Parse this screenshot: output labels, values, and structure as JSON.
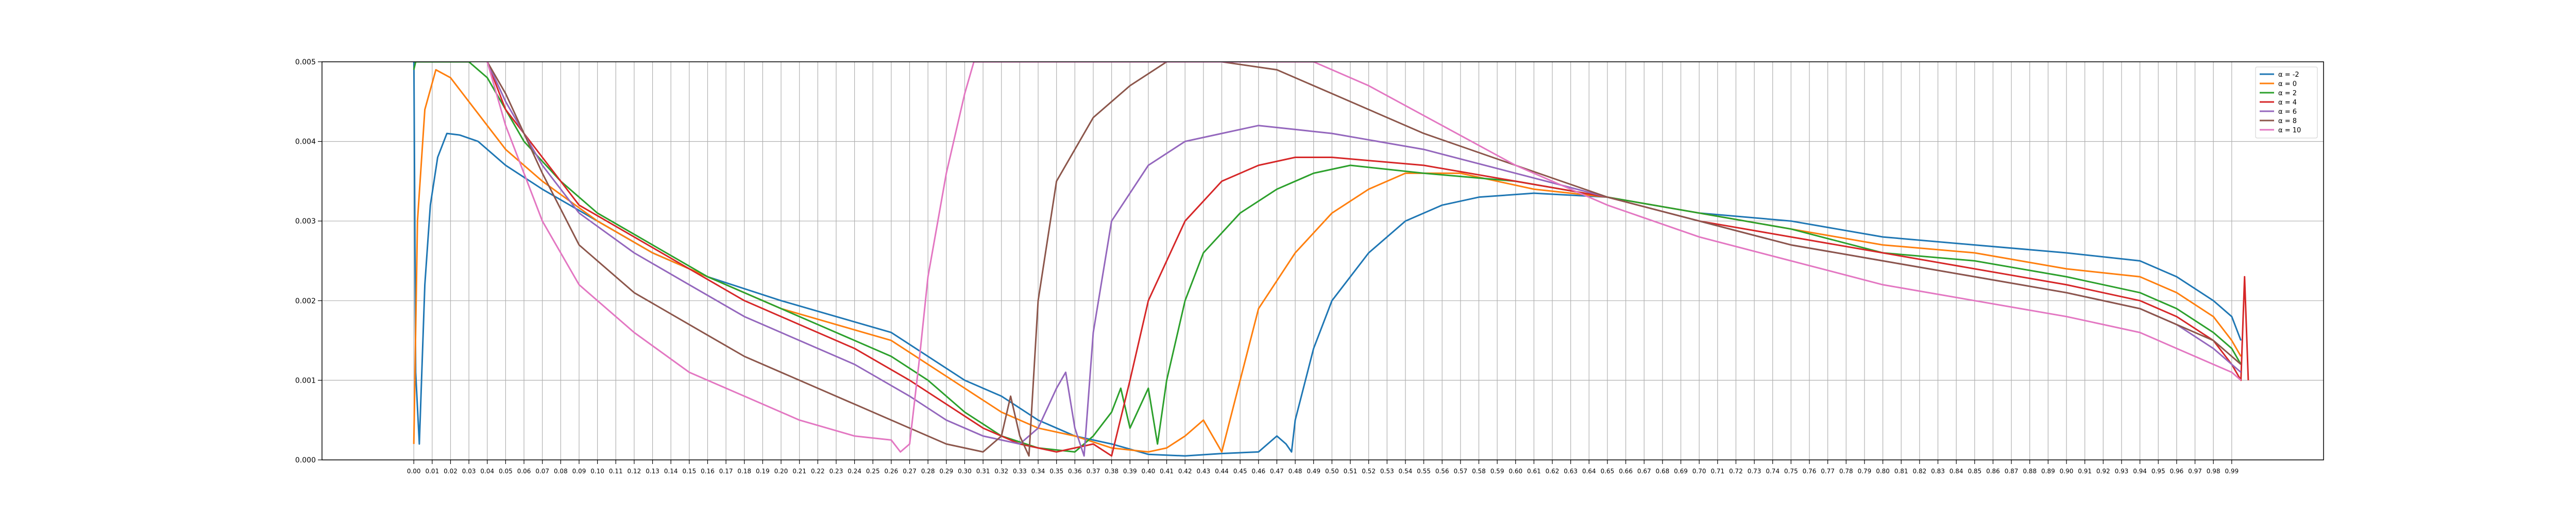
{
  "chart_data": {
    "type": "line",
    "title": "",
    "xlabel": "",
    "ylabel": "",
    "xlim": [
      -0.05,
      1.04
    ],
    "ylim": [
      0,
      0.005
    ],
    "grid": true,
    "legend_position": "top-right",
    "y_ticks": [
      "0.000",
      "0.001",
      "0.002",
      "0.003",
      "0.004",
      "0.005"
    ],
    "series": [
      {
        "name": "α = -2",
        "color": "#1f77b4",
        "points": [
          [
            0.0,
            0.0052
          ],
          [
            0.001,
            0.0011
          ],
          [
            0.003,
            0.0002
          ],
          [
            0.006,
            0.0022
          ],
          [
            0.009,
            0.0032
          ],
          [
            0.013,
            0.0038
          ],
          [
            0.018,
            0.0041
          ],
          [
            0.025,
            0.00408
          ],
          [
            0.035,
            0.004
          ],
          [
            0.05,
            0.0037
          ],
          [
            0.07,
            0.0034
          ],
          [
            0.1,
            0.003
          ],
          [
            0.13,
            0.0026
          ],
          [
            0.16,
            0.0023
          ],
          [
            0.2,
            0.002
          ],
          [
            0.23,
            0.0018
          ],
          [
            0.26,
            0.0016
          ],
          [
            0.28,
            0.0013
          ],
          [
            0.3,
            0.001
          ],
          [
            0.32,
            0.0008
          ],
          [
            0.34,
            0.0005
          ],
          [
            0.36,
            0.0003
          ],
          [
            0.38,
            0.0002
          ],
          [
            0.4,
            7e-05
          ],
          [
            0.42,
            5e-05
          ],
          [
            0.44,
            8e-05
          ],
          [
            0.46,
            0.0001
          ],
          [
            0.47,
            0.0003
          ],
          [
            0.475,
            0.0002
          ],
          [
            0.478,
            0.0001
          ],
          [
            0.48,
            0.0005
          ],
          [
            0.49,
            0.0014
          ],
          [
            0.5,
            0.002
          ],
          [
            0.52,
            0.0026
          ],
          [
            0.54,
            0.003
          ],
          [
            0.56,
            0.0032
          ],
          [
            0.58,
            0.0033
          ],
          [
            0.61,
            0.00335
          ],
          [
            0.65,
            0.0033
          ],
          [
            0.7,
            0.0031
          ],
          [
            0.75,
            0.003
          ],
          [
            0.8,
            0.0028
          ],
          [
            0.85,
            0.0027
          ],
          [
            0.9,
            0.0026
          ],
          [
            0.94,
            0.0025
          ],
          [
            0.96,
            0.0023
          ],
          [
            0.98,
            0.002
          ],
          [
            0.99,
            0.0018
          ],
          [
            0.995,
            0.0015
          ]
        ]
      },
      {
        "name": "α = 0",
        "color": "#ff7f0e",
        "points": [
          [
            0.0,
            0.0002
          ],
          [
            0.002,
            0.003
          ],
          [
            0.006,
            0.0044
          ],
          [
            0.012,
            0.0049
          ],
          [
            0.02,
            0.0048
          ],
          [
            0.03,
            0.0045
          ],
          [
            0.05,
            0.0039
          ],
          [
            0.07,
            0.0035
          ],
          [
            0.1,
            0.003
          ],
          [
            0.13,
            0.0026
          ],
          [
            0.16,
            0.0023
          ],
          [
            0.2,
            0.0019
          ],
          [
            0.23,
            0.0017
          ],
          [
            0.26,
            0.0015
          ],
          [
            0.28,
            0.0012
          ],
          [
            0.3,
            0.0009
          ],
          [
            0.32,
            0.0006
          ],
          [
            0.34,
            0.0004
          ],
          [
            0.36,
            0.0003
          ],
          [
            0.38,
            0.00015
          ],
          [
            0.4,
            0.0001
          ],
          [
            0.41,
            0.00015
          ],
          [
            0.42,
            0.0003
          ],
          [
            0.43,
            0.0005
          ],
          [
            0.44,
            0.0001
          ],
          [
            0.45,
            0.001
          ],
          [
            0.46,
            0.0019
          ],
          [
            0.48,
            0.0026
          ],
          [
            0.5,
            0.0031
          ],
          [
            0.52,
            0.0034
          ],
          [
            0.54,
            0.0036
          ],
          [
            0.57,
            0.0036
          ],
          [
            0.61,
            0.0034
          ],
          [
            0.65,
            0.0033
          ],
          [
            0.7,
            0.0031
          ],
          [
            0.75,
            0.0029
          ],
          [
            0.8,
            0.0027
          ],
          [
            0.85,
            0.0026
          ],
          [
            0.9,
            0.0024
          ],
          [
            0.94,
            0.0023
          ],
          [
            0.96,
            0.0021
          ],
          [
            0.98,
            0.0018
          ],
          [
            0.99,
            0.0015
          ],
          [
            0.995,
            0.0013
          ]
        ]
      },
      {
        "name": "α = 2",
        "color": "#2ca02c",
        "points": [
          [
            0.0,
            0.0049
          ],
          [
            0.001,
            0.005
          ],
          [
            0.03,
            0.005
          ],
          [
            0.04,
            0.0048
          ],
          [
            0.06,
            0.004
          ],
          [
            0.08,
            0.0035
          ],
          [
            0.1,
            0.0031
          ],
          [
            0.13,
            0.0027
          ],
          [
            0.16,
            0.0023
          ],
          [
            0.2,
            0.0019
          ],
          [
            0.23,
            0.0016
          ],
          [
            0.26,
            0.0013
          ],
          [
            0.28,
            0.001
          ],
          [
            0.3,
            0.0006
          ],
          [
            0.32,
            0.0003
          ],
          [
            0.34,
            0.00015
          ],
          [
            0.36,
            0.0001
          ],
          [
            0.37,
            0.0003
          ],
          [
            0.38,
            0.0006
          ],
          [
            0.385,
            0.0009
          ],
          [
            0.39,
            0.0004
          ],
          [
            0.4,
            0.0009
          ],
          [
            0.405,
            0.0002
          ],
          [
            0.41,
            0.001
          ],
          [
            0.42,
            0.002
          ],
          [
            0.43,
            0.0026
          ],
          [
            0.45,
            0.0031
          ],
          [
            0.47,
            0.0034
          ],
          [
            0.49,
            0.0036
          ],
          [
            0.51,
            0.0037
          ],
          [
            0.55,
            0.0036
          ],
          [
            0.6,
            0.0035
          ],
          [
            0.65,
            0.0033
          ],
          [
            0.7,
            0.0031
          ],
          [
            0.75,
            0.0029
          ],
          [
            0.8,
            0.0026
          ],
          [
            0.85,
            0.0025
          ],
          [
            0.9,
            0.0023
          ],
          [
            0.94,
            0.0021
          ],
          [
            0.96,
            0.0019
          ],
          [
            0.98,
            0.0016
          ],
          [
            0.99,
            0.0014
          ],
          [
            0.995,
            0.0012
          ]
        ]
      },
      {
        "name": "α = 4",
        "color": "#d62728",
        "points": [
          [
            0.04,
            0.005
          ],
          [
            0.05,
            0.0044
          ],
          [
            0.07,
            0.0038
          ],
          [
            0.09,
            0.0032
          ],
          [
            0.12,
            0.0028
          ],
          [
            0.15,
            0.0024
          ],
          [
            0.18,
            0.002
          ],
          [
            0.21,
            0.0017
          ],
          [
            0.24,
            0.0014
          ],
          [
            0.27,
            0.001
          ],
          [
            0.29,
            0.0007
          ],
          [
            0.31,
            0.0004
          ],
          [
            0.33,
            0.0002
          ],
          [
            0.35,
            0.0001
          ],
          [
            0.37,
            0.0002
          ],
          [
            0.38,
            5e-05
          ],
          [
            0.39,
            0.001
          ],
          [
            0.4,
            0.002
          ],
          [
            0.42,
            0.003
          ],
          [
            0.44,
            0.0035
          ],
          [
            0.46,
            0.0037
          ],
          [
            0.48,
            0.0038
          ],
          [
            0.5,
            0.0038
          ],
          [
            0.55,
            0.0037
          ],
          [
            0.6,
            0.0035
          ],
          [
            0.65,
            0.0033
          ],
          [
            0.7,
            0.003
          ],
          [
            0.75,
            0.0028
          ],
          [
            0.8,
            0.0026
          ],
          [
            0.85,
            0.0024
          ],
          [
            0.9,
            0.0022
          ],
          [
            0.94,
            0.002
          ],
          [
            0.96,
            0.0018
          ],
          [
            0.98,
            0.0015
          ],
          [
            0.99,
            0.0012
          ],
          [
            0.995,
            0.001
          ],
          [
            0.997,
            0.0023
          ],
          [
            0.999,
            0.001
          ]
        ]
      },
      {
        "name": "α = 6",
        "color": "#9467bd",
        "points": [
          [
            0.04,
            0.005
          ],
          [
            0.05,
            0.0045
          ],
          [
            0.07,
            0.0037
          ],
          [
            0.09,
            0.0031
          ],
          [
            0.12,
            0.0026
          ],
          [
            0.15,
            0.0022
          ],
          [
            0.18,
            0.0018
          ],
          [
            0.21,
            0.0015
          ],
          [
            0.24,
            0.0012
          ],
          [
            0.27,
            0.0008
          ],
          [
            0.29,
            0.0005
          ],
          [
            0.31,
            0.0003
          ],
          [
            0.33,
            0.0002
          ],
          [
            0.34,
            0.0004
          ],
          [
            0.35,
            0.0009
          ],
          [
            0.355,
            0.0011
          ],
          [
            0.36,
            0.0004
          ],
          [
            0.365,
            5e-05
          ],
          [
            0.37,
            0.0016
          ],
          [
            0.38,
            0.003
          ],
          [
            0.4,
            0.0037
          ],
          [
            0.42,
            0.004
          ],
          [
            0.44,
            0.0041
          ],
          [
            0.46,
            0.0042
          ],
          [
            0.5,
            0.0041
          ],
          [
            0.55,
            0.0039
          ],
          [
            0.6,
            0.0036
          ],
          [
            0.65,
            0.0033
          ],
          [
            0.7,
            0.003
          ],
          [
            0.75,
            0.0027
          ],
          [
            0.8,
            0.0025
          ],
          [
            0.85,
            0.0023
          ],
          [
            0.9,
            0.0021
          ],
          [
            0.94,
            0.0019
          ],
          [
            0.96,
            0.0017
          ],
          [
            0.98,
            0.0014
          ],
          [
            0.99,
            0.0012
          ],
          [
            0.995,
            0.0011
          ]
        ]
      },
      {
        "name": "α = 8",
        "color": "#8c564b",
        "points": [
          [
            0.04,
            0.005
          ],
          [
            0.05,
            0.0046
          ],
          [
            0.07,
            0.0036
          ],
          [
            0.09,
            0.0027
          ],
          [
            0.12,
            0.0021
          ],
          [
            0.15,
            0.0017
          ],
          [
            0.18,
            0.0013
          ],
          [
            0.21,
            0.001
          ],
          [
            0.24,
            0.0007
          ],
          [
            0.27,
            0.0004
          ],
          [
            0.29,
            0.0002
          ],
          [
            0.31,
            0.0001
          ],
          [
            0.32,
            0.0003
          ],
          [
            0.325,
            0.0008
          ],
          [
            0.33,
            0.0003
          ],
          [
            0.335,
            5e-05
          ],
          [
            0.34,
            0.002
          ],
          [
            0.35,
            0.0035
          ],
          [
            0.37,
            0.0043
          ],
          [
            0.39,
            0.0047
          ],
          [
            0.41,
            0.005
          ],
          [
            0.44,
            0.005
          ],
          [
            0.47,
            0.0049
          ],
          [
            0.5,
            0.0046
          ],
          [
            0.55,
            0.0041
          ],
          [
            0.6,
            0.0037
          ],
          [
            0.65,
            0.0033
          ],
          [
            0.7,
            0.003
          ],
          [
            0.75,
            0.0027
          ],
          [
            0.8,
            0.0025
          ],
          [
            0.85,
            0.0023
          ],
          [
            0.9,
            0.0021
          ],
          [
            0.94,
            0.0019
          ],
          [
            0.96,
            0.0017
          ],
          [
            0.98,
            0.0015
          ],
          [
            0.99,
            0.0013
          ],
          [
            0.995,
            0.0012
          ]
        ]
      },
      {
        "name": "α = 10",
        "color": "#e377c2",
        "points": [
          [
            0.04,
            0.005
          ],
          [
            0.05,
            0.0042
          ],
          [
            0.07,
            0.003
          ],
          [
            0.09,
            0.0022
          ],
          [
            0.12,
            0.0016
          ],
          [
            0.15,
            0.0011
          ],
          [
            0.18,
            0.0008
          ],
          [
            0.21,
            0.0005
          ],
          [
            0.24,
            0.0003
          ],
          [
            0.26,
            0.00025
          ],
          [
            0.265,
            0.0001
          ],
          [
            0.27,
            0.0002
          ],
          [
            0.275,
            0.0012
          ],
          [
            0.28,
            0.0023
          ],
          [
            0.29,
            0.0036
          ],
          [
            0.3,
            0.0046
          ],
          [
            0.305,
            0.005
          ],
          [
            0.49,
            0.005
          ],
          [
            0.52,
            0.0047
          ],
          [
            0.56,
            0.0042
          ],
          [
            0.6,
            0.0037
          ],
          [
            0.65,
            0.0032
          ],
          [
            0.7,
            0.0028
          ],
          [
            0.75,
            0.0025
          ],
          [
            0.8,
            0.0022
          ],
          [
            0.85,
            0.002
          ],
          [
            0.9,
            0.0018
          ],
          [
            0.94,
            0.0016
          ],
          [
            0.96,
            0.0014
          ],
          [
            0.98,
            0.0012
          ],
          [
            0.99,
            0.0011
          ],
          [
            0.995,
            0.001
          ]
        ]
      }
    ]
  }
}
